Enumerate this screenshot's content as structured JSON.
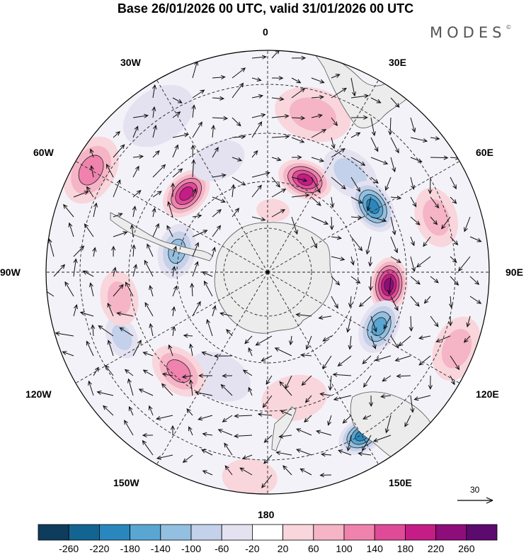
{
  "header": {
    "title": "Base 26/01/2026 00 UTC, valid 31/01/2026 00 UTC",
    "brand": "MODES",
    "brand_mark": "©"
  },
  "map": {
    "projection": "south-polar-stereographic",
    "longitude_labels": {
      "top": "0",
      "bottom": "180",
      "left": "90W",
      "right": "90E",
      "upper_left_1": "30W",
      "upper_left_2": "60W",
      "upper_right_1": "30E",
      "upper_right_2": "60E",
      "lower_left_1": "120W",
      "lower_left_2": "150W",
      "lower_right_1": "120E",
      "lower_right_2": "150E"
    },
    "reference_vector": "30"
  },
  "colorbar": {
    "colors": [
      "#0d3c5c",
      "#136591",
      "#2a87bd",
      "#5aa6d2",
      "#93bfe0",
      "#c3d1ea",
      "#e4e2f0",
      "#ffffff",
      "#f8d6dc",
      "#f5b5c6",
      "#ef83ad",
      "#e04b98",
      "#c51d86",
      "#8f0d7a",
      "#5c0a6e"
    ],
    "labels": [
      "-260",
      "-220",
      "-180",
      "-140",
      "-100",
      "-60",
      "-20",
      "20",
      "60",
      "100",
      "140",
      "180",
      "220",
      "260"
    ]
  },
  "anomalies": [
    {
      "lon": 16,
      "r": 0.74,
      "value": 80,
      "size": 0.14
    },
    {
      "lon": 22,
      "r": 0.45,
      "value": 230,
      "size": 0.1
    },
    {
      "lon": 40,
      "r": 0.58,
      "value": -90,
      "size": 0.11
    },
    {
      "lon": 58,
      "r": 0.56,
      "value": -230,
      "size": 0.1
    },
    {
      "lon": 72,
      "r": 0.8,
      "value": 110,
      "size": 0.11
    },
    {
      "lon": 96,
      "r": 0.55,
      "value": 250,
      "size": 0.1
    },
    {
      "lon": 116,
      "r": 0.56,
      "value": -190,
      "size": 0.1
    },
    {
      "lon": 112,
      "r": 0.92,
      "value": 100,
      "size": 0.12
    },
    {
      "lon": 150,
      "r": 0.85,
      "value": -220,
      "size": 0.09
    },
    {
      "lon": 168,
      "r": 0.58,
      "value": 60,
      "size": 0.12
    },
    {
      "lon": 205,
      "r": 0.52,
      "value": -60,
      "size": 0.12
    },
    {
      "lon": 222,
      "r": 0.6,
      "value": 140,
      "size": 0.11
    },
    {
      "lon": 246,
      "r": 0.72,
      "value": -100,
      "size": 0.08
    },
    {
      "lon": 260,
      "r": 0.68,
      "value": 90,
      "size": 0.1
    },
    {
      "lon": 283,
      "r": 0.42,
      "value": -140,
      "size": 0.1
    },
    {
      "lon": 300,
      "r": 0.92,
      "value": 140,
      "size": 0.13
    },
    {
      "lon": 314,
      "r": 0.51,
      "value": 230,
      "size": 0.1
    },
    {
      "lon": 336,
      "r": 0.55,
      "value": -70,
      "size": 0.1
    },
    {
      "lon": 325,
      "r": 0.86,
      "value": -50,
      "size": 0.14
    },
    {
      "lon": 5,
      "r": 0.28,
      "value": 30,
      "size": 0.06
    },
    {
      "lon": 185,
      "r": 0.93,
      "value": 70,
      "size": 0.1
    }
  ]
}
